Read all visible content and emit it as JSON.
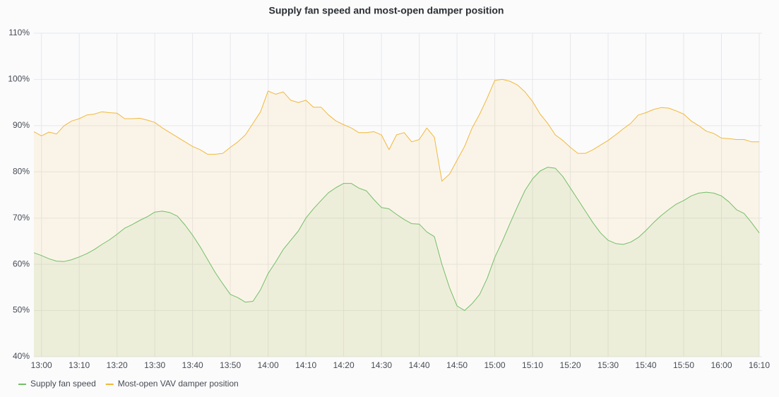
{
  "chart_data": {
    "type": "line",
    "title": "Supply fan speed and most-open damper position",
    "x": [
      "12:58",
      "13:00",
      "13:02",
      "13:04",
      "13:06",
      "13:08",
      "13:10",
      "13:12",
      "13:14",
      "13:16",
      "13:18",
      "13:20",
      "13:22",
      "13:24",
      "13:26",
      "13:28",
      "13:30",
      "13:32",
      "13:34",
      "13:36",
      "13:38",
      "13:40",
      "13:42",
      "13:44",
      "13:46",
      "13:48",
      "13:50",
      "13:52",
      "13:54",
      "13:56",
      "13:58",
      "14:00",
      "14:02",
      "14:04",
      "14:06",
      "14:08",
      "14:10",
      "14:12",
      "14:14",
      "14:16",
      "14:18",
      "14:20",
      "14:22",
      "14:24",
      "14:26",
      "14:28",
      "14:30",
      "14:32",
      "14:34",
      "14:36",
      "14:38",
      "14:40",
      "14:42",
      "14:44",
      "14:46",
      "14:48",
      "14:50",
      "14:52",
      "14:54",
      "14:56",
      "14:58",
      "15:00",
      "15:02",
      "15:04",
      "15:06",
      "15:08",
      "15:10",
      "15:12",
      "15:14",
      "15:16",
      "15:18",
      "15:20",
      "15:22",
      "15:24",
      "15:26",
      "15:28",
      "15:30",
      "15:32",
      "15:34",
      "15:36",
      "15:38",
      "15:40",
      "15:42",
      "15:44",
      "15:46",
      "15:48",
      "15:50",
      "15:52",
      "15:54",
      "15:56",
      "15:58",
      "16:00",
      "16:02",
      "16:04",
      "16:06",
      "16:08",
      "16:10"
    ],
    "series": [
      {
        "name": "Supply fan speed",
        "color": "#73bf69",
        "values": [
          62.5,
          61.9,
          61.2,
          60.7,
          60.6,
          61.0,
          61.6,
          62.3,
          63.2,
          64.3,
          65.3,
          66.5,
          67.8,
          68.6,
          69.5,
          70.3,
          71.3,
          71.5,
          71.2,
          70.4,
          68.5,
          66.3,
          63.8,
          61.0,
          58.2,
          55.8,
          53.5,
          52.8,
          51.8,
          52.0,
          54.5,
          58.0,
          60.5,
          63.2,
          65.2,
          67.2,
          70.0,
          72.0,
          73.8,
          75.5,
          76.6,
          77.5,
          77.5,
          76.5,
          75.9,
          74.0,
          72.3,
          72.0,
          70.8,
          69.7,
          68.8,
          68.7,
          67.0,
          66.0,
          60.0,
          55.0,
          51.0,
          50.0,
          51.5,
          53.5,
          57.0,
          61.5,
          65.0,
          68.8,
          72.5,
          76.0,
          78.5,
          80.2,
          81.0,
          80.8,
          79.0,
          76.5,
          74.0,
          71.5,
          69.0,
          66.8,
          65.2,
          64.5,
          64.3,
          64.8,
          65.8,
          67.3,
          69.0,
          70.5,
          71.8,
          73.0,
          73.8,
          74.8,
          75.4,
          75.6,
          75.4,
          74.8,
          73.5,
          71.8,
          71.0,
          69.0,
          66.8
        ]
      },
      {
        "name": "Most-open VAV damper position",
        "color": "#f2b83b",
        "values": [
          88.7,
          87.8,
          88.6,
          88.2,
          90.0,
          91.0,
          91.5,
          92.3,
          92.5,
          93.0,
          92.8,
          92.7,
          91.5,
          91.5,
          91.6,
          91.2,
          90.7,
          89.5,
          88.5,
          87.5,
          86.5,
          85.5,
          84.8,
          83.8,
          83.8,
          84.0,
          85.3,
          86.5,
          88.0,
          90.5,
          93.0,
          97.5,
          96.8,
          97.3,
          95.5,
          95.0,
          95.5,
          94.0,
          94.0,
          92.3,
          91.0,
          90.2,
          89.5,
          88.5,
          88.5,
          88.7,
          88.0,
          84.8,
          88.0,
          88.5,
          86.5,
          87.0,
          89.5,
          87.5,
          78.0,
          79.5,
          82.5,
          85.5,
          89.5,
          92.5,
          96.0,
          99.8,
          100.0,
          99.6,
          98.8,
          97.3,
          95.2,
          92.5,
          90.5,
          88.0,
          86.8,
          85.3,
          84.0,
          84.0,
          84.8,
          85.8,
          86.8,
          88.0,
          89.3,
          90.5,
          92.3,
          92.8,
          93.5,
          93.9,
          93.8,
          93.2,
          92.5,
          91.0,
          90.0,
          88.8,
          88.3,
          87.3,
          87.2,
          87.0,
          87.0,
          86.5,
          86.5
        ]
      }
    ],
    "xlim": [
      "12:58",
      "16:10"
    ],
    "xticks": [
      "13:00",
      "13:10",
      "13:20",
      "13:30",
      "13:40",
      "13:50",
      "14:00",
      "14:10",
      "14:20",
      "14:30",
      "14:40",
      "14:50",
      "15:00",
      "15:10",
      "15:20",
      "15:30",
      "15:40",
      "15:50",
      "16:00",
      "16:10"
    ],
    "ylim": [
      40,
      110
    ],
    "yticks": [
      {
        "value": 40,
        "label": "40%"
      },
      {
        "value": 50,
        "label": "50%"
      },
      {
        "value": 60,
        "label": "60%"
      },
      {
        "value": 70,
        "label": "70%"
      },
      {
        "value": 80,
        "label": "80%"
      },
      {
        "value": 90,
        "label": "90%"
      },
      {
        "value": 100,
        "label": "100%"
      },
      {
        "value": 110,
        "label": "110%"
      }
    ],
    "grid": true,
    "fill": true,
    "legend": "bottom-left"
  }
}
